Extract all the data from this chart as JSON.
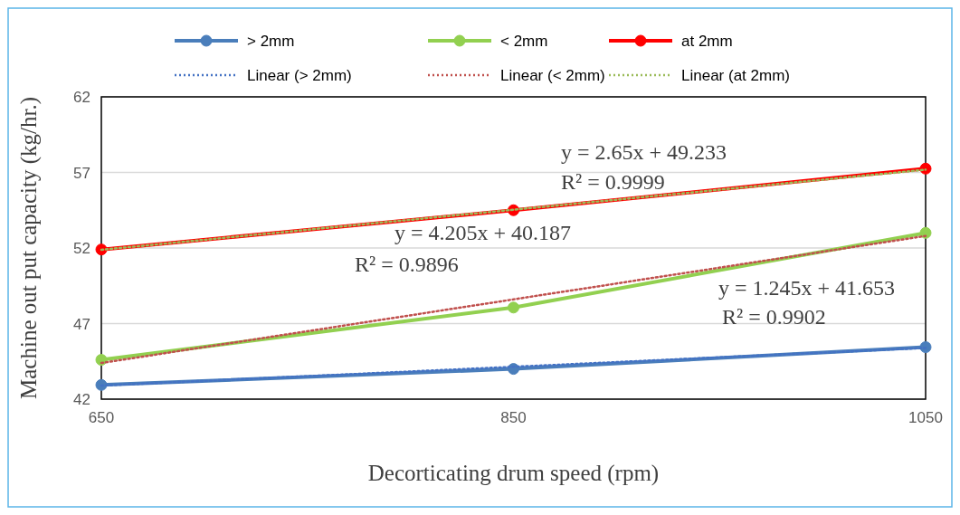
{
  "chart_data": {
    "type": "line",
    "xlabel": "Decorticating drum speed (rpm)",
    "ylabel": "Machine out put capacity (kg/hr.)",
    "x": [
      650,
      850,
      1050
    ],
    "xlim": [
      650,
      1050
    ],
    "xticks": [
      650,
      850,
      1050
    ],
    "ylim": [
      42,
      62
    ],
    "yticks": [
      42,
      47,
      52,
      57,
      62
    ],
    "grid": "y",
    "legend": "top",
    "marker": "circle",
    "series": [
      {
        "name": "> 2mm",
        "color": "#4a7ebb",
        "values": [
          42.94,
          44.0,
          45.44
        ]
      },
      {
        "name": "< 2mm",
        "color": "#92d050",
        "values": [
          44.6,
          48.06,
          53.0
        ]
      },
      {
        "name": "at 2mm",
        "color": "#ff0000",
        "values": [
          51.9,
          54.5,
          57.25
        ]
      },
      {
        "name": "Linear (> 2mm)",
        "type": "line",
        "color": "#4472c4",
        "values": [
          42.9,
          44.14,
          45.39
        ],
        "line_style": "dotted",
        "marker": "none"
      },
      {
        "name": "Linear (< 2mm)",
        "type": "line",
        "color": "#c0504d",
        "values": [
          44.39,
          48.6,
          52.8
        ],
        "line_style": "dotted",
        "marker": "none"
      },
      {
        "name": "Linear (at 2mm)",
        "type": "line",
        "color": "#9bbb59",
        "values": [
          51.88,
          54.53,
          57.18
        ],
        "line_style": "dotted",
        "marker": "none"
      }
    ],
    "annotations": [
      "y = 2.65x + 49.233",
      "R² = 0.9999",
      "y = 4.205x + 40.187",
      "R² = 0.9896",
      "y = 1.245x + 41.653",
      "R² = 0.9902"
    ]
  }
}
